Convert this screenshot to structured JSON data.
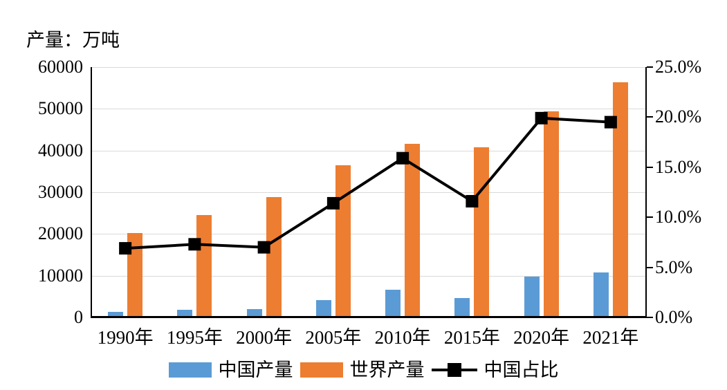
{
  "chart": {
    "title": "产量：万吨"
  },
  "legend": {
    "items": [
      {
        "label": "中国产量",
        "type": "bar",
        "color": "#5b9bd5"
      },
      {
        "label": "世界产量",
        "type": "bar",
        "color": "#ed7d31"
      },
      {
        "label": "中国占比",
        "type": "line",
        "color": "#000000"
      }
    ]
  },
  "chart_data": {
    "type": "bar",
    "subtype": "bar-line-combo",
    "title": "产量：万吨",
    "categories": [
      "1990年",
      "1995年",
      "2000年",
      "2005年",
      "2010年",
      "2015年",
      "2020年",
      "2021年"
    ],
    "series": [
      {
        "name": "中国产量",
        "type": "bar",
        "axis": "left",
        "color": "#5b9bd5",
        "values": [
          1400,
          1800,
          2000,
          4200,
          6600,
          4700,
          9700,
          10800
        ]
      },
      {
        "name": "世界产量",
        "type": "bar",
        "axis": "left",
        "color": "#ed7d31",
        "values": [
          20300,
          24500,
          28800,
          36500,
          41600,
          40700,
          49400,
          56400
        ]
      },
      {
        "name": "中国占比",
        "type": "line",
        "axis": "right",
        "color": "#000000",
        "marker": "square",
        "values": [
          6.9,
          7.3,
          7.0,
          11.4,
          15.9,
          11.6,
          19.9,
          19.5
        ]
      }
    ],
    "left_axis": {
      "min": 0,
      "max": 60000,
      "step": 10000,
      "tick_labels": [
        "0",
        "10000",
        "20000",
        "30000",
        "40000",
        "50000",
        "60000"
      ]
    },
    "right_axis": {
      "min": 0,
      "max": 25,
      "step": 5,
      "tick_labels": [
        "0.0%",
        "5.0%",
        "10.0%",
        "15.0%",
        "20.0%",
        "25.0%"
      ]
    },
    "grid": true,
    "gridline_color": "#d9d9d9",
    "legend_position": "bottom"
  }
}
